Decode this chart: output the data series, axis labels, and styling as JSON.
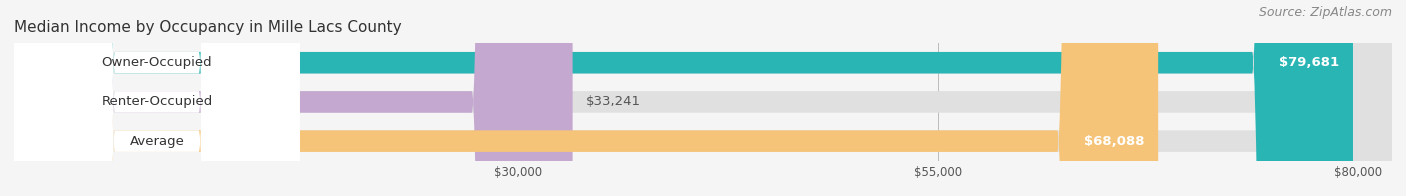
{
  "title": "Median Income by Occupancy in Mille Lacs County",
  "source": "Source: ZipAtlas.com",
  "categories": [
    "Owner-Occupied",
    "Renter-Occupied",
    "Average"
  ],
  "values": [
    79681,
    33241,
    68088
  ],
  "bar_colors": [
    "#2ab5b5",
    "#c4a8d0",
    "#f5c478"
  ],
  "bar_bg_color": "#e0e0e0",
  "xlim": [
    0,
    82000
  ],
  "xticks": [
    30000,
    55000,
    80000
  ],
  "xtick_labels": [
    "$30,000",
    "$55,000",
    "$80,000"
  ],
  "title_fontsize": 11,
  "source_fontsize": 9,
  "label_fontsize": 9.5,
  "value_fontsize": 9.5,
  "bar_height": 0.55,
  "background_color": "#f5f5f5"
}
